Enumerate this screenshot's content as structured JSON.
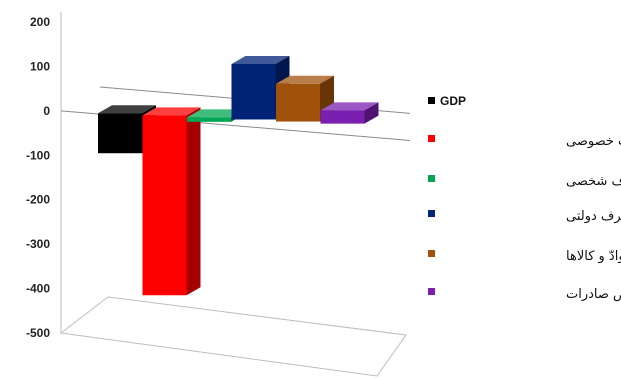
{
  "chart_data": {
    "type": "bar",
    "ylim": [
      -500,
      200
    ],
    "yticks": [
      200,
      100,
      0,
      -100,
      -200,
      -300,
      -400,
      -500
    ],
    "series": [
      {
        "name": "GDP",
        "value": -90,
        "color": "#000000"
      },
      {
        "name": "سرمایه گذاری ثابت خصوصی",
        "value": -405,
        "color": "#ff0000"
      },
      {
        "name": "مصرف شخصی",
        "value": -10,
        "color": "#00a651"
      },
      {
        "name": "مصرف دولتی",
        "value": 125,
        "color": "#002277"
      },
      {
        "name": "موجودی موادّ و کالاها",
        "value": 85,
        "color": "#a0520b"
      },
      {
        "name": "خالص صادرات",
        "value": 30,
        "color": "#7a1fb0"
      }
    ],
    "legend_position": "right",
    "grid": false
  }
}
